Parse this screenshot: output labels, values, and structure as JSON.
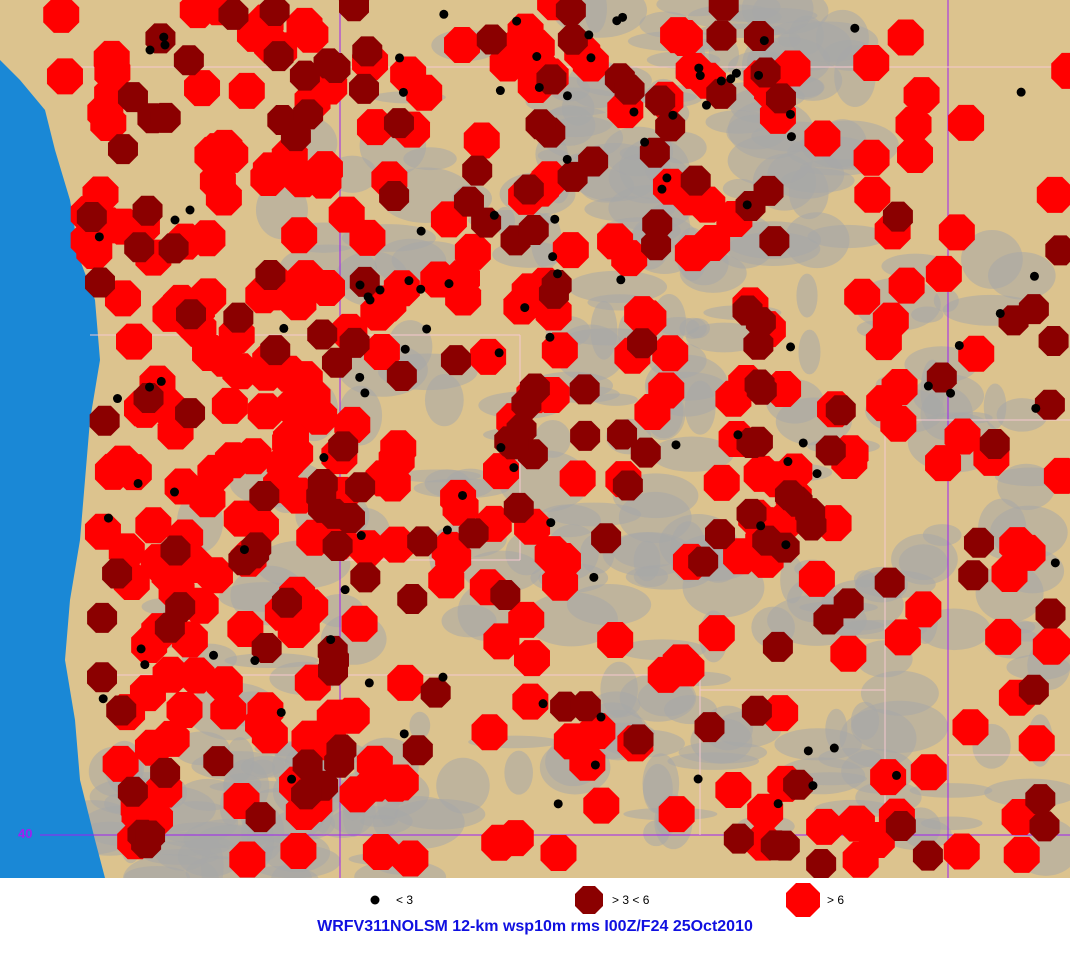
{
  "map": {
    "latitude_label": "40",
    "colors": {
      "ocean": "#1a88d6",
      "land": "#dcc38e",
      "terrain": "#a8a8a8",
      "grid": "#a020f0",
      "low": "#000000",
      "mid": "#8b0000",
      "high": "#ff0000"
    }
  },
  "legend": {
    "items": [
      {
        "label": "< 3",
        "symbol": "dot",
        "color": "#000000"
      },
      {
        "label": "> 3 < 6",
        "symbol": "octagon",
        "color": "#8b0000"
      },
      {
        "label": "> 6",
        "symbol": "octagon",
        "color": "#ff0000"
      }
    ]
  },
  "title": "WRFV311NOLSM 12-km wsp10m rms I00Z/F24 25Oct2010"
}
